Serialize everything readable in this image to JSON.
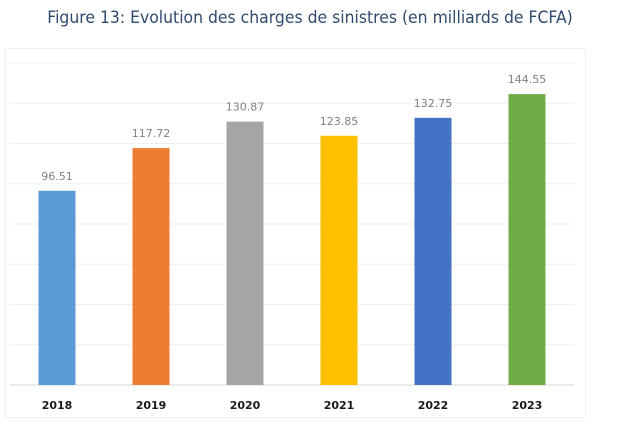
{
  "title": "Figure 13: Evolution des charges de sinistres (en milliards de FCFA)",
  "chart_data": {
    "type": "bar",
    "title": "Figure 13: Evolution des charges de sinistres (en milliards de FCFA)",
    "categories": [
      "2018",
      "2019",
      "2020",
      "2021",
      "2022",
      "2023"
    ],
    "values": [
      96.51,
      117.72,
      130.87,
      123.85,
      132.75,
      144.55
    ],
    "value_labels": [
      "96.51",
      "117.72",
      "130.87",
      "123.85",
      "132.75",
      "144.55"
    ],
    "colors": [
      "#5b9bd5",
      "#ed7d31",
      "#a5a5a5",
      "#ffc000",
      "#4472c4",
      "#70ad47"
    ],
    "xlabel": "",
    "ylabel": "",
    "ylim": [
      0,
      160
    ],
    "grid": true,
    "gridline_step": 20,
    "y_tick_labels_shown": false,
    "legend": "none"
  }
}
